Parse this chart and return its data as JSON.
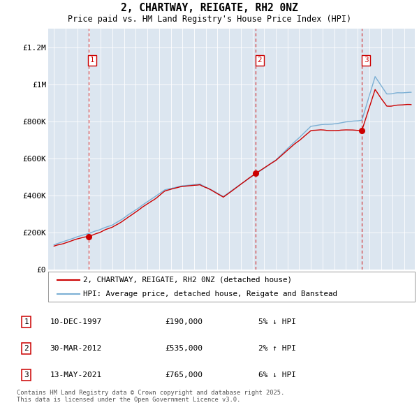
{
  "title": "2, CHARTWAY, REIGATE, RH2 0NZ",
  "subtitle": "Price paid vs. HM Land Registry's House Price Index (HPI)",
  "background_color": "#dce6f0",
  "plot_bg_color": "#dce6f0",
  "hpi_color": "#7bafd4",
  "price_color": "#cc0000",
  "vline_color": "#cc0000",
  "ylim": [
    0,
    1300000
  ],
  "yticks": [
    0,
    200000,
    400000,
    600000,
    800000,
    1000000,
    1200000
  ],
  "ytick_labels": [
    "£0",
    "£200K",
    "£400K",
    "£600K",
    "£800K",
    "£1M",
    "£1.2M"
  ],
  "legend_label_red": "2, CHARTWAY, REIGATE, RH2 0NZ (detached house)",
  "legend_label_blue": "HPI: Average price, detached house, Reigate and Banstead",
  "transactions": [
    {
      "num": 1,
      "date": "10-DEC-1997",
      "price": 190000,
      "pct": "5%",
      "dir": "↓",
      "x": 1997.94
    },
    {
      "num": 2,
      "date": "30-MAR-2012",
      "price": 535000,
      "pct": "2%",
      "dir": "↑",
      "x": 2012.25
    },
    {
      "num": 3,
      "date": "13-MAY-2021",
      "price": 765000,
      "pct": "6%",
      "dir": "↓",
      "x": 2021.37
    }
  ],
  "footer": "Contains HM Land Registry data © Crown copyright and database right 2025.\nThis data is licensed under the Open Government Licence v3.0.",
  "xmin": 1994.5,
  "xmax": 2025.9
}
